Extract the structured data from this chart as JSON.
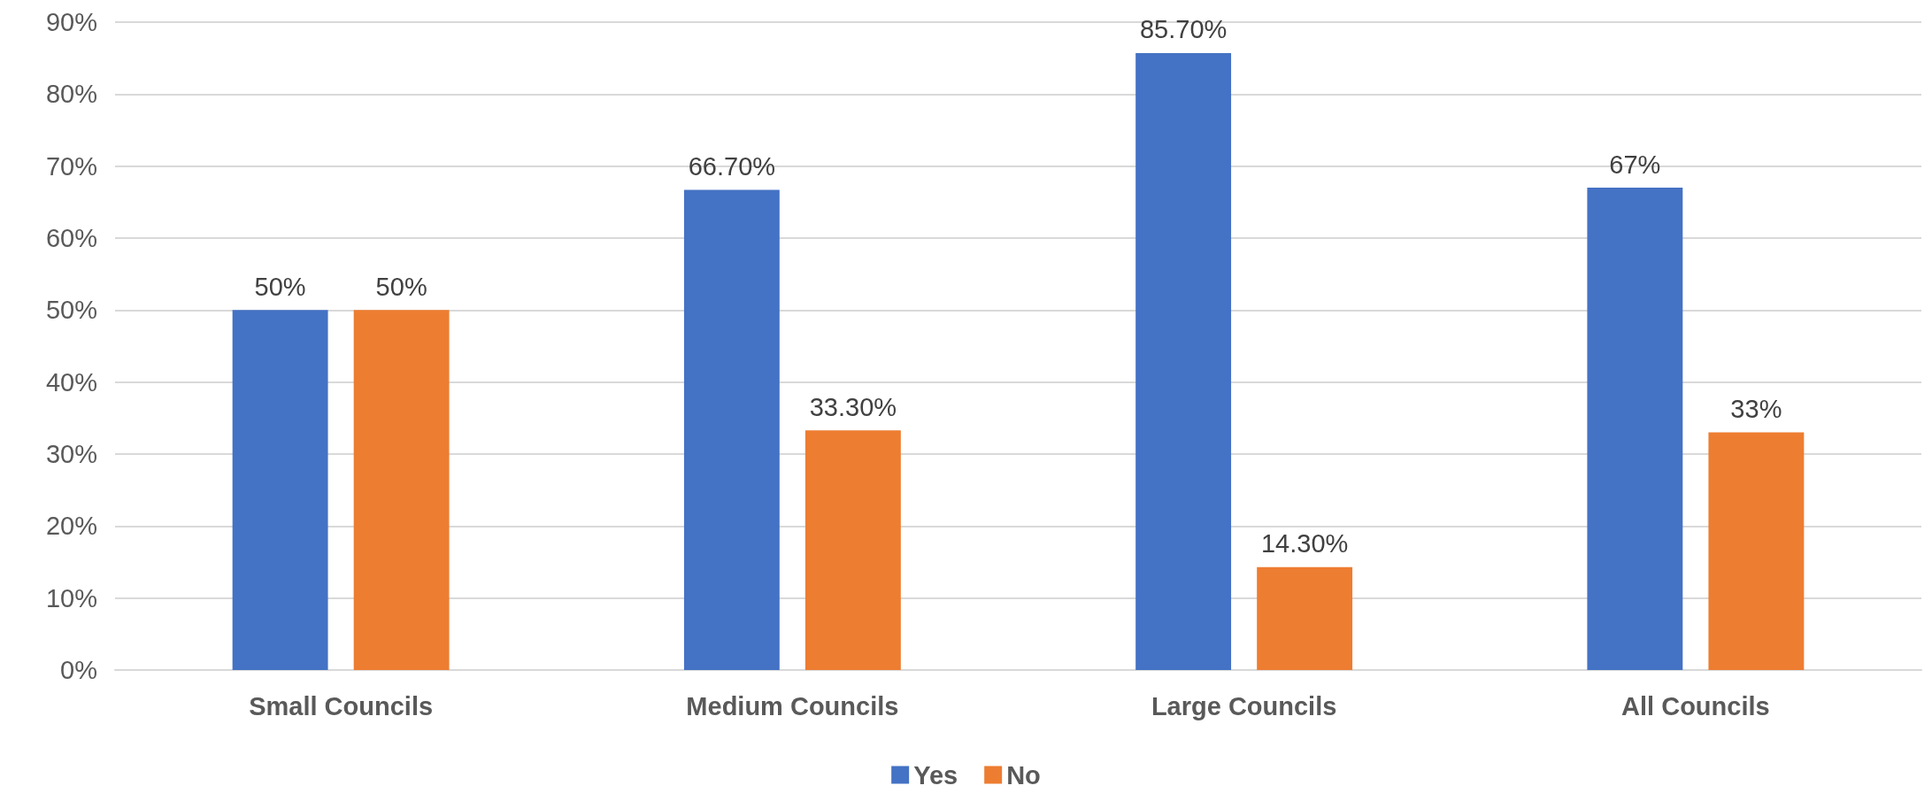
{
  "chart_data": {
    "type": "bar",
    "categories": [
      "Small Councils",
      "Medium Councils",
      "Large Councils",
      "All Councils"
    ],
    "series": [
      {
        "name": "Yes",
        "color": "#4472c4",
        "values": [
          50,
          66.7,
          85.7,
          67
        ],
        "value_labels": [
          "50%",
          "66.70%",
          "85.70%",
          "67%"
        ]
      },
      {
        "name": "No",
        "color": "#ed7d31",
        "values": [
          50,
          33.3,
          14.3,
          33
        ],
        "value_labels": [
          "50%",
          "33.30%",
          "14.30%",
          "33%"
        ]
      }
    ],
    "ylim": [
      0,
      90
    ],
    "yticks": [
      {
        "value": 0,
        "label": "0%"
      },
      {
        "value": 10,
        "label": "10%"
      },
      {
        "value": 20,
        "label": "20%"
      },
      {
        "value": 30,
        "label": "30%"
      },
      {
        "value": 40,
        "label": "40%"
      },
      {
        "value": 50,
        "label": "50%"
      },
      {
        "value": 60,
        "label": "60%"
      },
      {
        "value": 70,
        "label": "70%"
      },
      {
        "value": 80,
        "label": "80%"
      },
      {
        "value": 90,
        "label": "90%"
      }
    ],
    "grid": "y",
    "legend": "bottom"
  }
}
